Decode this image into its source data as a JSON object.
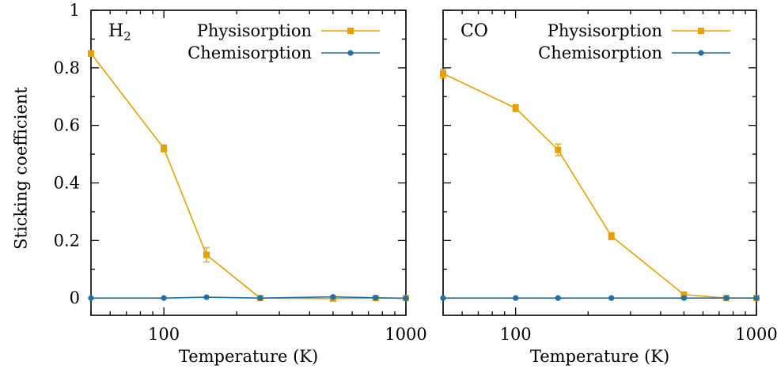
{
  "chart_data": [
    {
      "type": "line",
      "panel_label": "H",
      "panel_label_sub": "2",
      "xlabel": "Temperature (K)",
      "ylabel": "Sticking coefficient",
      "x_scale": "log",
      "xlim": [
        50,
        1000
      ],
      "ylim": [
        -0.06,
        1.0
      ],
      "x_ticks": [
        {
          "value": 100,
          "label": "100"
        },
        {
          "value": 1000,
          "label": "1000"
        }
      ],
      "y_ticks": [
        {
          "value": 0,
          "label": "0"
        },
        {
          "value": 0.2,
          "label": "0.2"
        },
        {
          "value": 0.4,
          "label": "0.4"
        },
        {
          "value": 0.6,
          "label": "0.6"
        },
        {
          "value": 0.8,
          "label": "0.8"
        },
        {
          "value": 1,
          "label": "1"
        }
      ],
      "legend_position": "top-right",
      "series": [
        {
          "name": "Physisorption",
          "color": "#e6a000",
          "marker": "square",
          "x": [
            50,
            100,
            150,
            250,
            500,
            750,
            1000
          ],
          "y": [
            0.85,
            0.52,
            0.15,
            0.0,
            -0.002,
            0.0,
            0.0
          ],
          "err": [
            0.01,
            0.012,
            0.025,
            0.006,
            0.006,
            0.006,
            0.006
          ]
        },
        {
          "name": "Chemisorption",
          "color": "#1f6faa",
          "marker": "circle",
          "x": [
            50,
            100,
            150,
            250,
            500,
            750,
            1000
          ],
          "y": [
            0.0,
            0.0,
            0.003,
            0.0,
            0.004,
            0.001,
            -0.001
          ],
          "err": [
            0,
            0,
            0,
            0,
            0,
            0,
            0
          ]
        }
      ]
    },
    {
      "type": "line",
      "panel_label": "CO",
      "panel_label_sub": "",
      "xlabel": "Temperature (K)",
      "ylabel": "",
      "x_scale": "log",
      "xlim": [
        50,
        1000
      ],
      "ylim": [
        -0.06,
        1.0
      ],
      "x_ticks": [
        {
          "value": 100,
          "label": "100"
        },
        {
          "value": 1000,
          "label": "1000"
        }
      ],
      "y_ticks": [
        {
          "value": 0,
          "label": ""
        },
        {
          "value": 0.2,
          "label": ""
        },
        {
          "value": 0.4,
          "label": ""
        },
        {
          "value": 0.6,
          "label": ""
        },
        {
          "value": 0.8,
          "label": ""
        },
        {
          "value": 1,
          "label": ""
        }
      ],
      "legend_position": "top-right",
      "series": [
        {
          "name": "Physisorption",
          "color": "#e6a000",
          "marker": "square",
          "x": [
            50,
            100,
            150,
            250,
            500,
            750,
            1000
          ],
          "y": [
            0.78,
            0.66,
            0.515,
            0.215,
            0.012,
            0.0,
            0.0
          ],
          "err": [
            0.015,
            0.012,
            0.02,
            0.012,
            0.005,
            0.005,
            0.005
          ]
        },
        {
          "name": "Chemisorption",
          "color": "#1f6faa",
          "marker": "circle",
          "x": [
            50,
            100,
            150,
            250,
            500,
            750,
            1000
          ],
          "y": [
            0.0,
            0.0,
            0.0,
            0.0,
            0.0,
            0.0,
            0.0
          ],
          "err": [
            0,
            0,
            0,
            0,
            0,
            0,
            0
          ]
        }
      ]
    }
  ]
}
